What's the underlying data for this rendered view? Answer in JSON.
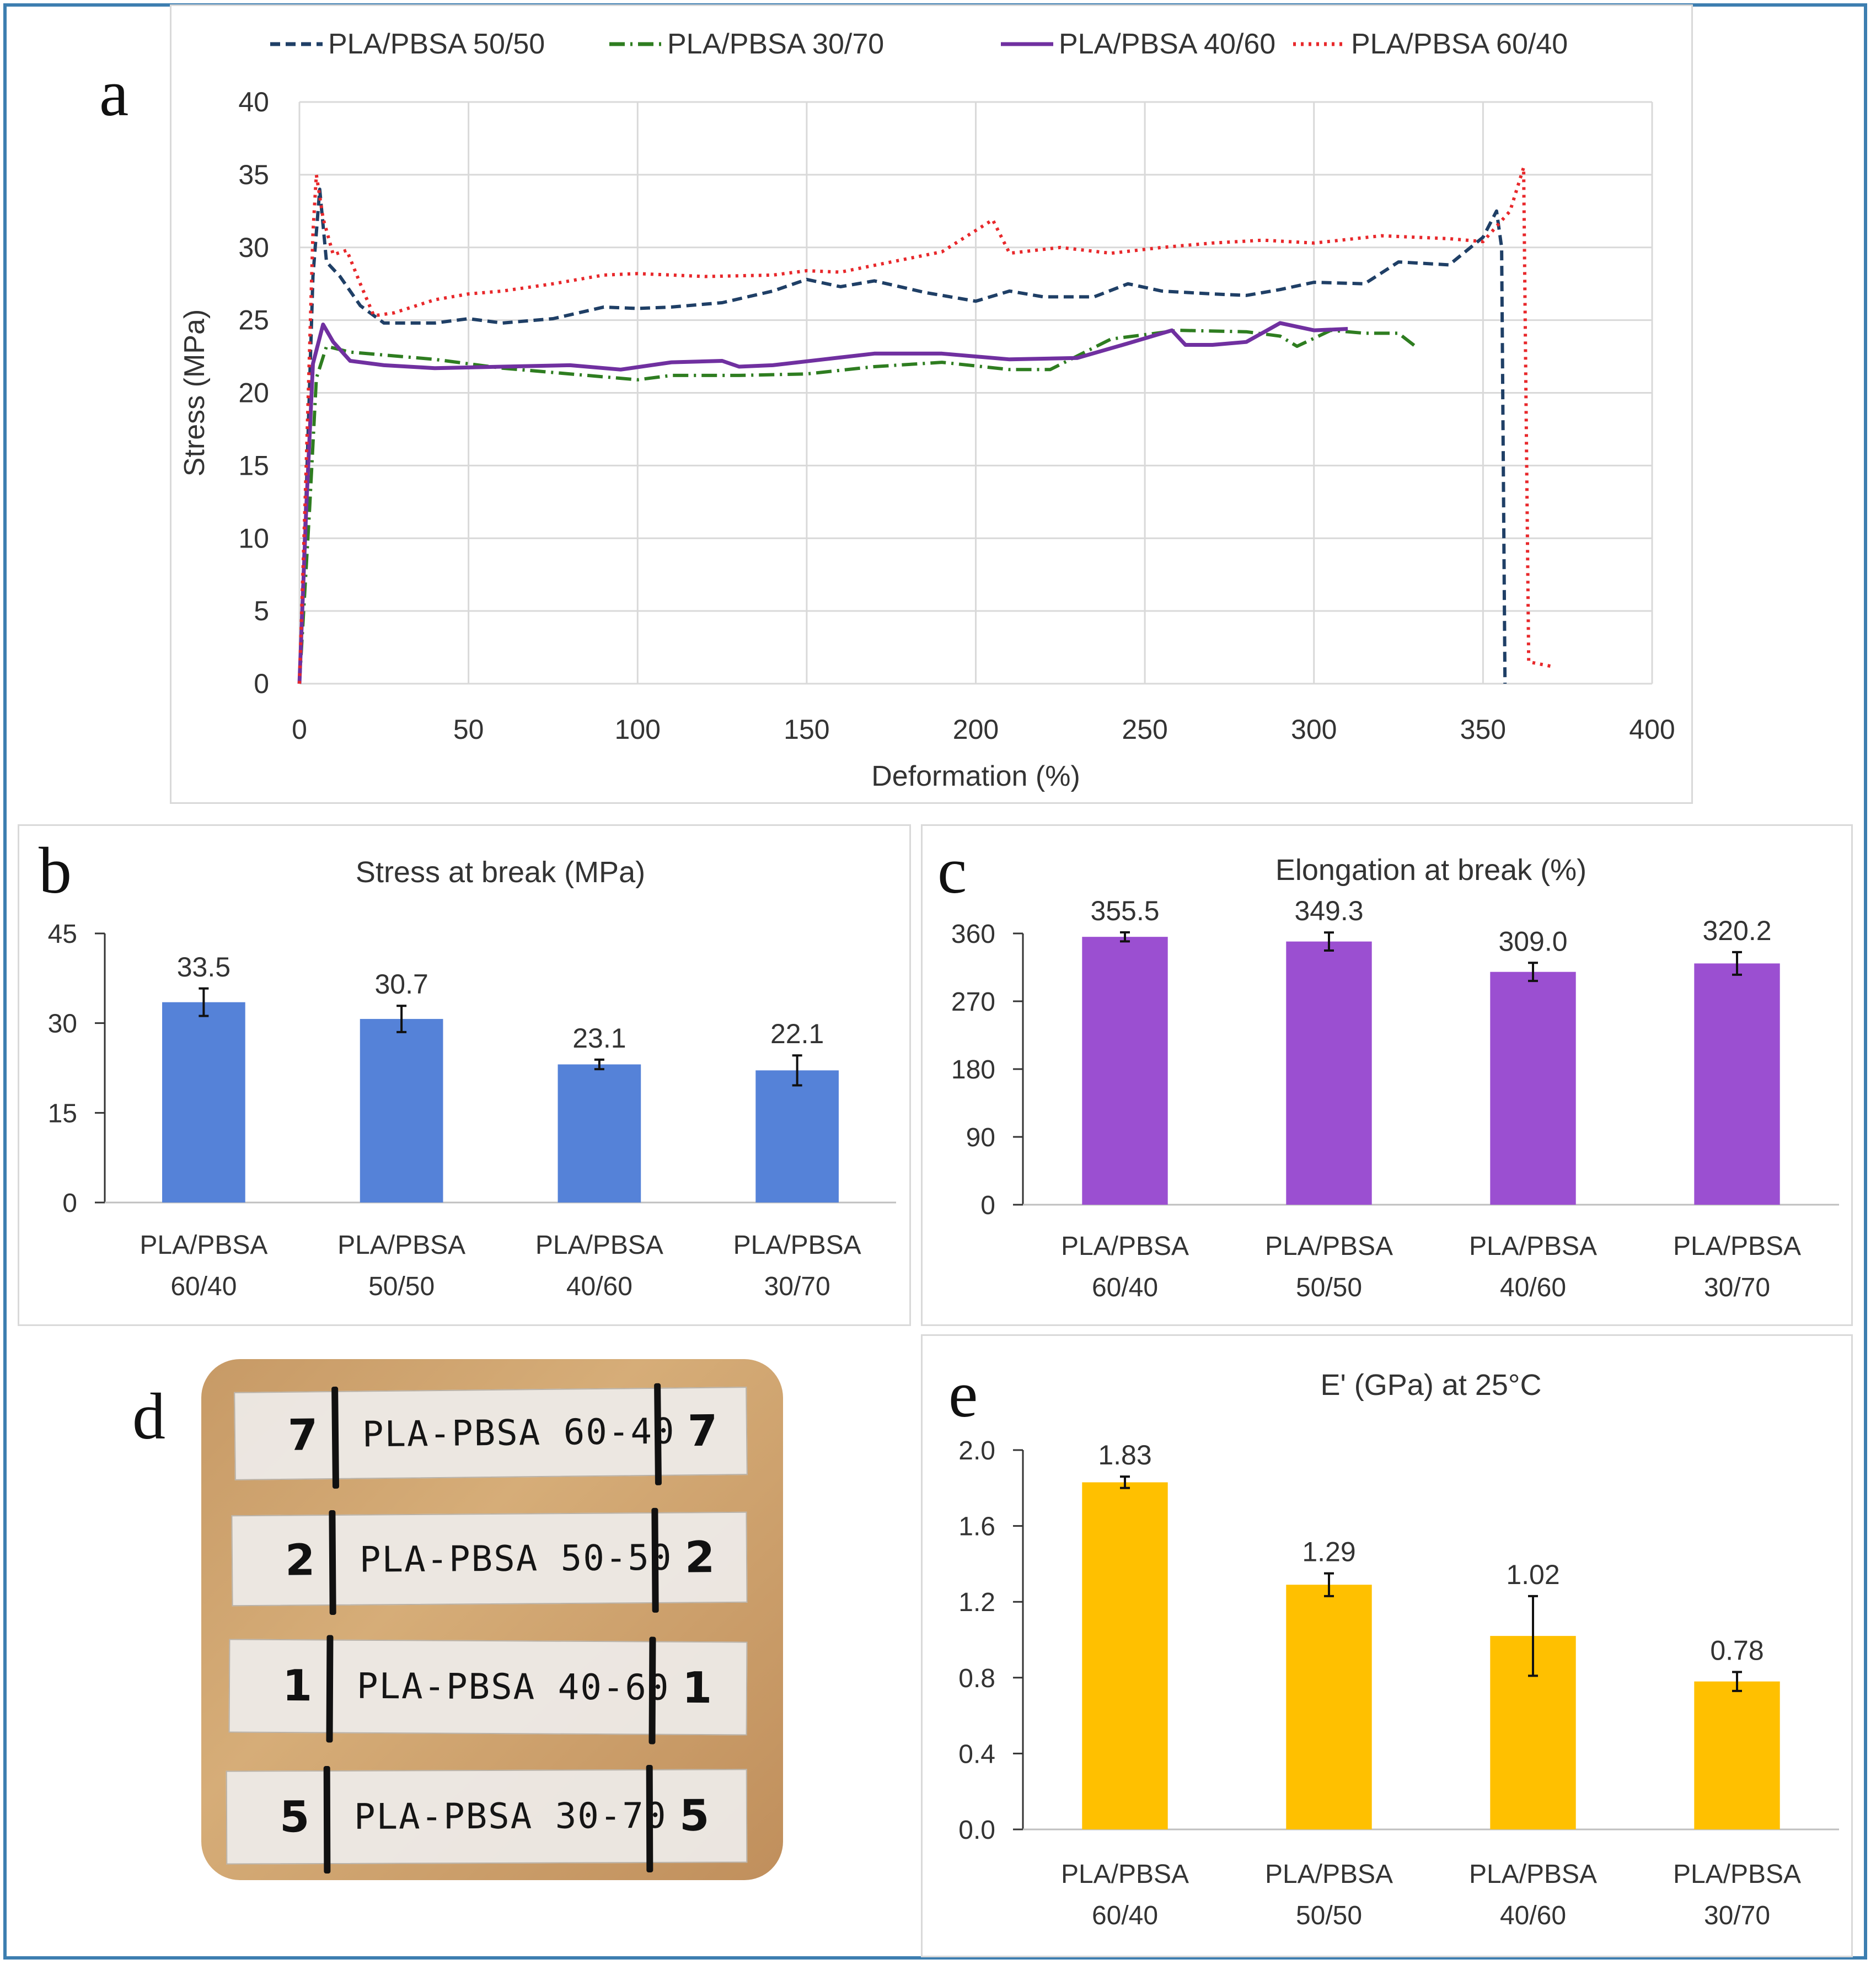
{
  "panel_labels": {
    "a": "a",
    "b": "b",
    "c": "c",
    "d": "d",
    "e": "e"
  },
  "colors": {
    "s5050": "#1f3f66",
    "s3070": "#2e7d20",
    "s4060": "#7030a0",
    "s6040": "#e8282b",
    "barB": "#5582d8",
    "barC": "#9b4fd1",
    "barE": "#ffc000",
    "frame": "#3d7eb0"
  },
  "chart_data": [
    {
      "id": "a",
      "type": "line",
      "title": "",
      "xlabel": "Deformation (%)",
      "ylabel": "Stress (MPa)",
      "xlim": [
        0,
        400
      ],
      "ylim": [
        0,
        40
      ],
      "xticks": [
        0,
        50,
        100,
        150,
        200,
        250,
        300,
        350,
        400
      ],
      "yticks": [
        0,
        5,
        10,
        15,
        20,
        25,
        30,
        35,
        40
      ],
      "grid": true,
      "legend": "top",
      "series": [
        {
          "name": "PLA/PBSA 50/50",
          "color": "#1f3f66",
          "dash": "18,10",
          "points": [
            [
              0,
              0
            ],
            [
              2,
              13
            ],
            [
              4,
              28
            ],
            [
              6,
              34
            ],
            [
              8,
              29
            ],
            [
              12,
              28
            ],
            [
              18,
              26
            ],
            [
              25,
              24.8
            ],
            [
              40,
              24.8
            ],
            [
              50,
              25.1
            ],
            [
              60,
              24.8
            ],
            [
              75,
              25.1
            ],
            [
              90,
              25.9
            ],
            [
              100,
              25.8
            ],
            [
              110,
              25.9
            ],
            [
              125,
              26.2
            ],
            [
              140,
              27
            ],
            [
              150,
              27.8
            ],
            [
              160,
              27.3
            ],
            [
              170,
              27.7
            ],
            [
              185,
              26.9
            ],
            [
              200,
              26.3
            ],
            [
              210,
              27
            ],
            [
              220,
              26.6
            ],
            [
              235,
              26.6
            ],
            [
              245,
              27.5
            ],
            [
              255,
              27
            ],
            [
              270,
              26.8
            ],
            [
              280,
              26.7
            ],
            [
              290,
              27.1
            ],
            [
              300,
              27.6
            ],
            [
              315,
              27.5
            ],
            [
              325,
              29
            ],
            [
              340,
              28.8
            ],
            [
              350,
              30.7
            ],
            [
              354,
              32.5
            ],
            [
              355.5,
              30
            ],
            [
              356.5,
              0
            ]
          ]
        },
        {
          "name": "PLA/PBSA 30/70",
          "color": "#2e7d20",
          "dash": "28,10,4,10",
          "points": [
            [
              0,
              0
            ],
            [
              3,
              12
            ],
            [
              5,
              21
            ],
            [
              8,
              23.2
            ],
            [
              15,
              22.8
            ],
            [
              25,
              22.6
            ],
            [
              40,
              22.3
            ],
            [
              60,
              21.7
            ],
            [
              80,
              21.3
            ],
            [
              100,
              20.9
            ],
            [
              110,
              21.2
            ],
            [
              130,
              21.2
            ],
            [
              150,
              21.3
            ],
            [
              170,
              21.8
            ],
            [
              190,
              22.1
            ],
            [
              210,
              21.6
            ],
            [
              222,
              21.6
            ],
            [
              240,
              23.7
            ],
            [
              260,
              24.3
            ],
            [
              280,
              24.2
            ],
            [
              290,
              23.9
            ],
            [
              295,
              23.2
            ],
            [
              305,
              24.3
            ],
            [
              315,
              24.1
            ],
            [
              325,
              24.1
            ],
            [
              330,
              23.2
            ]
          ]
        },
        {
          "name": "PLA/PBSA 40/60",
          "color": "#7030a0",
          "dash": "",
          "points": [
            [
              0,
              0
            ],
            [
              2,
              12
            ],
            [
              4,
              22
            ],
            [
              7,
              24.7
            ],
            [
              10,
              23.5
            ],
            [
              15,
              22.2
            ],
            [
              25,
              21.9
            ],
            [
              40,
              21.7
            ],
            [
              60,
              21.8
            ],
            [
              80,
              21.9
            ],
            [
              95,
              21.6
            ],
            [
              110,
              22.1
            ],
            [
              125,
              22.2
            ],
            [
              130,
              21.8
            ],
            [
              140,
              21.9
            ],
            [
              155,
              22.3
            ],
            [
              170,
              22.7
            ],
            [
              190,
              22.7
            ],
            [
              210,
              22.3
            ],
            [
              230,
              22.4
            ],
            [
              245,
              23.4
            ],
            [
              258,
              24.3
            ],
            [
              262,
              23.3
            ],
            [
              270,
              23.3
            ],
            [
              280,
              23.5
            ],
            [
              290,
              24.8
            ],
            [
              300,
              24.3
            ],
            [
              310,
              24.4
            ]
          ]
        },
        {
          "name": "PLA/PBSA 60/40",
          "color": "#e8282b",
          "dash": "5,9",
          "points": [
            [
              0,
              0
            ],
            [
              2,
              15
            ],
            [
              4,
              31
            ],
            [
              5,
              35
            ],
            [
              7,
              32
            ],
            [
              10,
              29.5
            ],
            [
              14,
              29.8
            ],
            [
              18,
              27.5
            ],
            [
              22,
              25.3
            ],
            [
              28,
              25.5
            ],
            [
              40,
              26.4
            ],
            [
              50,
              26.8
            ],
            [
              60,
              27
            ],
            [
              75,
              27.5
            ],
            [
              90,
              28.1
            ],
            [
              100,
              28.2
            ],
            [
              120,
              28
            ],
            [
              140,
              28.1
            ],
            [
              150,
              28.4
            ],
            [
              160,
              28.3
            ],
            [
              175,
              29
            ],
            [
              190,
              29.7
            ],
            [
              205,
              31.9
            ],
            [
              210,
              29.6
            ],
            [
              225,
              30
            ],
            [
              240,
              29.6
            ],
            [
              255,
              30
            ],
            [
              270,
              30.3
            ],
            [
              285,
              30.5
            ],
            [
              300,
              30.3
            ],
            [
              320,
              30.8
            ],
            [
              340,
              30.6
            ],
            [
              350,
              30.4
            ],
            [
              358,
              32.5
            ],
            [
              362,
              35.5
            ],
            [
              363.5,
              1.5
            ],
            [
              370,
              1.2
            ]
          ]
        }
      ]
    },
    {
      "id": "b",
      "type": "bar",
      "title": "Stress at break (MPa)",
      "ylim": [
        0,
        45
      ],
      "yticks": [
        "0",
        "15",
        "30",
        "45"
      ],
      "categories": [
        [
          "PLA/PBSA",
          "60/40"
        ],
        [
          "PLA/PBSA",
          "50/50"
        ],
        [
          "PLA/PBSA",
          "40/60"
        ],
        [
          "PLA/PBSA",
          "30/70"
        ]
      ],
      "values": [
        33.5,
        30.7,
        23.1,
        22.1
      ],
      "errors": [
        2.3,
        2.2,
        0.8,
        2.5
      ],
      "labels": [
        "33.5",
        "30.7",
        "23.1",
        "22.1"
      ],
      "color": "#5582d8"
    },
    {
      "id": "c",
      "type": "bar",
      "title": "Elongation at break (%)",
      "ylim": [
        0,
        360
      ],
      "yticks": [
        "0",
        "90",
        "180",
        "270",
        "360"
      ],
      "categories": [
        [
          "PLA/PBSA",
          "60/40"
        ],
        [
          "PLA/PBSA",
          "50/50"
        ],
        [
          "PLA/PBSA",
          "40/60"
        ],
        [
          "PLA/PBSA",
          "30/70"
        ]
      ],
      "values": [
        355.5,
        349.3,
        309.0,
        320.2
      ],
      "errors": [
        6,
        12,
        12,
        15
      ],
      "labels": [
        "355.5",
        "349.3",
        "309.0",
        "320.2"
      ],
      "color": "#9b4fd1"
    },
    {
      "id": "e",
      "type": "bar",
      "title": "E' (GPa) at 25°C",
      "ylim": [
        0,
        2.0
      ],
      "yticks": [
        "0.0",
        "0.4",
        "0.8",
        "1.2",
        "1.6",
        "2.0"
      ],
      "categories": [
        [
          "PLA/PBSA",
          "60/40"
        ],
        [
          "PLA/PBSA",
          "50/50"
        ],
        [
          "PLA/PBSA",
          "40/60"
        ],
        [
          "PLA/PBSA",
          "30/70"
        ]
      ],
      "values": [
        1.83,
        1.29,
        1.02,
        0.78
      ],
      "errors": [
        0.03,
        0.06,
        0.21,
        0.05
      ],
      "labels": [
        "1.83",
        "1.29",
        "1.02",
        "0.78"
      ],
      "color": "#ffc000"
    }
  ],
  "photo": {
    "strips": [
      {
        "text": "PLA-PBSA 60-40",
        "num": "7"
      },
      {
        "text": "PLA-PBSA 50-50",
        "num": "2"
      },
      {
        "text": "PLA-PBSA 40-60",
        "num": "1"
      },
      {
        "text": "PLA-PBSA 30-70",
        "num": "5"
      }
    ]
  }
}
